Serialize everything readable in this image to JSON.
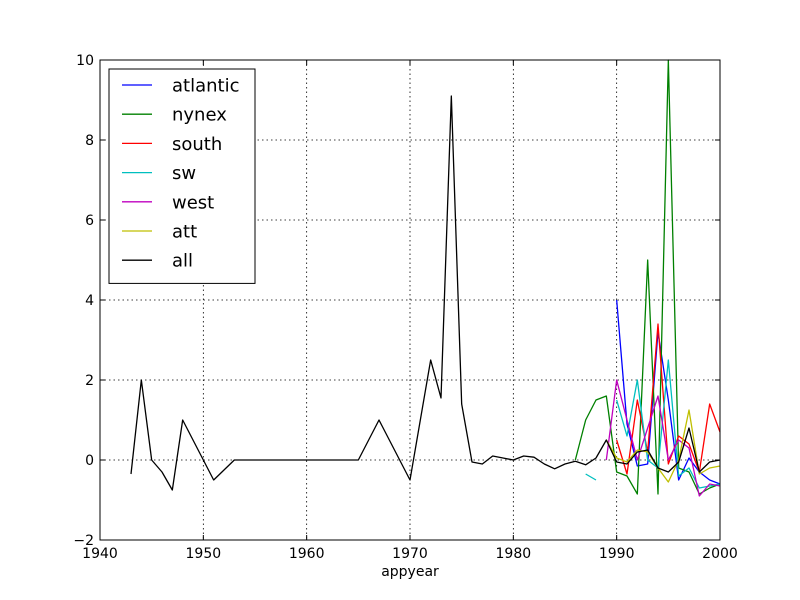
{
  "chart_data": {
    "type": "line",
    "title": "",
    "xlabel": "appyear",
    "ylabel": "",
    "xlim": [
      1940,
      2000
    ],
    "ylim": [
      -2,
      10
    ],
    "xticks": [
      1940,
      1950,
      1960,
      1970,
      1980,
      1990,
      2000
    ],
    "yticks": [
      -2,
      0,
      2,
      4,
      6,
      8,
      10
    ],
    "xtick_labels": [
      "1940",
      "1950",
      "1960",
      "1970",
      "1980",
      "1990",
      "2000"
    ],
    "ytick_labels": [
      "−2",
      "0",
      "2",
      "4",
      "6",
      "8",
      "10"
    ],
    "grid": true,
    "legend_position": "top-left",
    "series": [
      {
        "name": "atlantic",
        "color": "#0000ff",
        "points": [
          [
            1990,
            4.0
          ],
          [
            1991,
            0.9
          ],
          [
            1992,
            -0.15
          ],
          [
            1993,
            -0.1
          ],
          [
            1994,
            3.2
          ],
          [
            1995,
            1.5
          ],
          [
            1996,
            -0.5
          ],
          [
            1997,
            0.05
          ],
          [
            1998,
            -0.3
          ],
          [
            1999,
            -0.5
          ],
          [
            2000,
            -0.6
          ]
        ]
      },
      {
        "name": "nynex",
        "color": "#008000",
        "points": [
          [
            1986,
            0.0
          ],
          [
            1987,
            1.0
          ],
          [
            1988,
            1.5
          ],
          [
            1989,
            1.6
          ],
          [
            1990,
            -0.3
          ],
          [
            1991,
            -0.4
          ],
          [
            1992,
            -0.85
          ],
          [
            1993,
            5.0
          ],
          [
            1994,
            -0.85
          ],
          [
            1995,
            10.0
          ],
          [
            1996,
            -0.2
          ],
          [
            1997,
            -0.3
          ],
          [
            1998,
            -0.85
          ],
          [
            1999,
            -0.7
          ],
          [
            2000,
            -0.6
          ]
        ]
      },
      {
        "name": "south",
        "color": "#ff0000",
        "points": [
          [
            1990,
            0.5
          ],
          [
            1991,
            -0.35
          ],
          [
            1992,
            1.5
          ],
          [
            1993,
            0.2
          ],
          [
            1994,
            3.4
          ],
          [
            1995,
            -0.1
          ],
          [
            1996,
            0.6
          ],
          [
            1997,
            0.4
          ],
          [
            1998,
            -0.3
          ],
          [
            1999,
            1.4
          ],
          [
            2000,
            0.7
          ]
        ]
      },
      {
        "name": "sw",
        "color": "#00bfbf",
        "points": [
          [
            1987,
            -0.35
          ],
          [
            1988,
            -0.5
          ],
          [
            null,
            null
          ],
          [
            1990,
            1.5
          ],
          [
            1991,
            0.6
          ],
          [
            1992,
            2.0
          ],
          [
            1993,
            0.0
          ],
          [
            1994,
            -0.2
          ],
          [
            1995,
            2.5
          ],
          [
            1996,
            -0.4
          ],
          [
            1997,
            -0.2
          ],
          [
            1998,
            -0.7
          ],
          [
            1999,
            -0.65
          ],
          [
            2000,
            -0.6
          ]
        ]
      },
      {
        "name": "west",
        "color": "#bf00bf",
        "points": [
          [
            1989,
            0.0
          ],
          [
            1990,
            2.0
          ],
          [
            1991,
            1.0
          ],
          [
            1992,
            0.0
          ],
          [
            1993,
            0.8
          ],
          [
            1994,
            1.6
          ],
          [
            1995,
            0.0
          ],
          [
            1996,
            0.5
          ],
          [
            1997,
            0.3
          ],
          [
            1998,
            -0.9
          ],
          [
            1999,
            -0.6
          ],
          [
            2000,
            -0.65
          ]
        ]
      },
      {
        "name": "att",
        "color": "#bfbf00",
        "points": [
          [
            1989,
            0.5
          ],
          [
            1990,
            0.05
          ],
          [
            1991,
            -0.05
          ],
          [
            1992,
            0.25
          ],
          [
            1993,
            0.2
          ],
          [
            1994,
            -0.2
          ],
          [
            1995,
            -0.55
          ],
          [
            1996,
            0.0
          ],
          [
            1997,
            1.25
          ],
          [
            1998,
            -0.35
          ],
          [
            1999,
            -0.2
          ],
          [
            2000,
            -0.15
          ]
        ]
      },
      {
        "name": "all",
        "color": "#000000",
        "points": [
          [
            1943,
            -0.35
          ],
          [
            1944,
            2.0
          ],
          [
            1945,
            0.0
          ],
          [
            1946,
            -0.3
          ],
          [
            1947,
            -0.75
          ],
          [
            1948,
            1.0
          ],
          [
            1949,
            0.5
          ],
          [
            1950,
            0.0
          ],
          [
            1951,
            -0.5
          ],
          [
            1952,
            -0.25
          ],
          [
            1953,
            0.0
          ],
          [
            1954,
            0.0
          ],
          [
            1955,
            0.0
          ],
          [
            1956,
            0.0
          ],
          [
            1957,
            0.0
          ],
          [
            1958,
            0.0
          ],
          [
            1959,
            0.0
          ],
          [
            1960,
            0.0
          ],
          [
            1961,
            0.0
          ],
          [
            1962,
            0.0
          ],
          [
            1963,
            0.0
          ],
          [
            1964,
            0.0
          ],
          [
            1965,
            0.0
          ],
          [
            1966,
            0.5
          ],
          [
            1967,
            1.0
          ],
          [
            1968,
            0.5
          ],
          [
            1969,
            0.0
          ],
          [
            1970,
            -0.5
          ],
          [
            1971,
            1.0
          ],
          [
            1972,
            2.5
          ],
          [
            1973,
            1.55
          ],
          [
            1974,
            9.1
          ],
          [
            1975,
            1.4
          ],
          [
            1976,
            -0.05
          ],
          [
            1977,
            -0.1
          ],
          [
            1978,
            0.1
          ],
          [
            1979,
            0.05
          ],
          [
            1980,
            0.0
          ],
          [
            1981,
            0.1
          ],
          [
            1982,
            0.07
          ],
          [
            1983,
            -0.1
          ],
          [
            1984,
            -0.22
          ],
          [
            1985,
            -0.1
          ],
          [
            1986,
            -0.03
          ],
          [
            1987,
            -0.12
          ],
          [
            1988,
            0.05
          ],
          [
            1989,
            0.5
          ],
          [
            1990,
            -0.05
          ],
          [
            1991,
            -0.1
          ],
          [
            1992,
            0.2
          ],
          [
            1993,
            0.25
          ],
          [
            1994,
            -0.2
          ],
          [
            1995,
            -0.3
          ],
          [
            1996,
            -0.05
          ],
          [
            1997,
            0.8
          ],
          [
            1998,
            -0.3
          ],
          [
            1999,
            -0.05
          ],
          [
            2000,
            0.0
          ]
        ]
      }
    ]
  }
}
